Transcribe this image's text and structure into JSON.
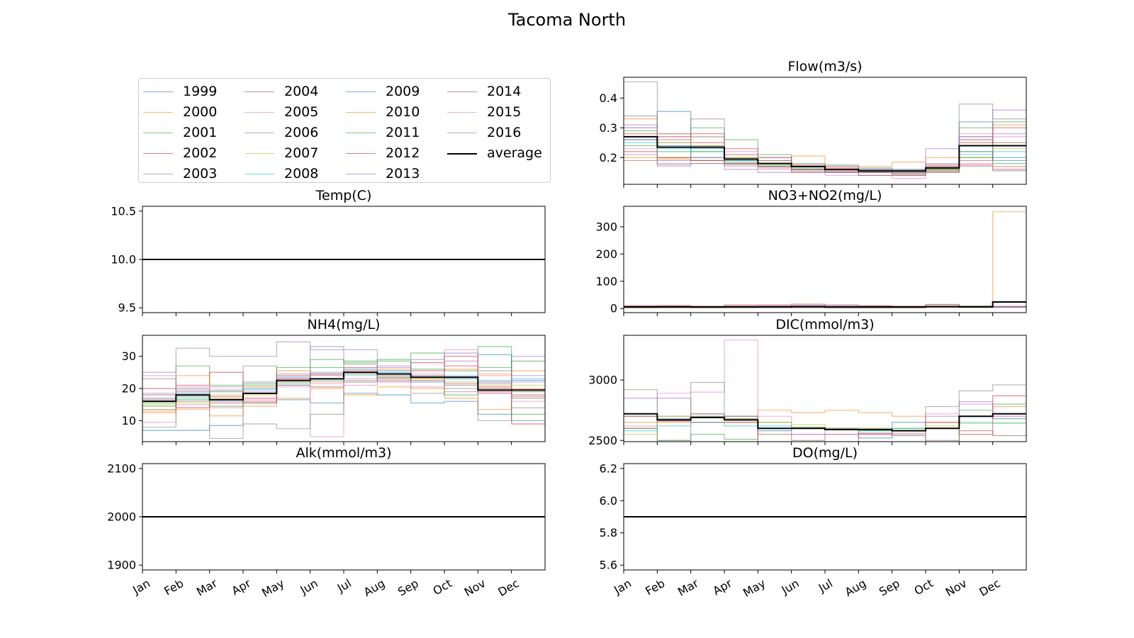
{
  "figure_title": "Tacoma North",
  "month_labels": [
    "Jan",
    "Feb",
    "Mar",
    "Apr",
    "May",
    "Jun",
    "Jul",
    "Aug",
    "Sep",
    "Oct",
    "Nov",
    "Dec"
  ],
  "year_colors": [
    "#1f77b4",
    "#ff7f0e",
    "#2ca02c",
    "#d62728",
    "#9467bd",
    "#8c564b",
    "#e377c2",
    "#7f7f7f",
    "#bcbd22",
    "#17becf",
    "#1f77b4",
    "#ff7f0e",
    "#2ca02c",
    "#d62728",
    "#9467bd",
    "#8c564b",
    "#e377c2",
    "#7f7f7f"
  ],
  "average_color": "#000000",
  "legend": [
    "1999",
    "2000",
    "2001",
    "2002",
    "2003",
    "2004",
    "2005",
    "2006",
    "2007",
    "2008",
    "2009",
    "2010",
    "2011",
    "2012",
    "2013",
    "2014",
    "2015",
    "2016",
    "average"
  ],
  "chart_data": [
    {
      "type": "line",
      "step": true,
      "title": "Temp(C)",
      "ylim": [
        9.45,
        10.55
      ],
      "yticks": [
        9.5,
        10.0,
        10.5
      ],
      "tick_format": "0.0",
      "series": [],
      "average": [
        10.0,
        10.0,
        10.0,
        10.0,
        10.0,
        10.0,
        10.0,
        10.0,
        10.0,
        10.0,
        10.0,
        10.0
      ]
    },
    {
      "type": "line",
      "step": true,
      "title": "NH4(mg/L)",
      "ylim": [
        3.5,
        36.5
      ],
      "yticks": [
        10,
        20,
        30
      ],
      "tick_format": "0",
      "series": [
        {
          "name": "1999",
          "values": [
            7.0,
            7.0,
            8.5,
            15.5,
            16.5,
            15.5,
            18.5,
            18.0,
            15.5,
            16.0,
            12.0,
            10.0
          ]
        },
        {
          "name": "2000",
          "values": [
            13.0,
            13.5,
            11.5,
            14.5,
            17.0,
            20.0,
            18.0,
            20.5,
            20.0,
            17.0,
            13.5,
            25.5
          ]
        },
        {
          "name": "2001",
          "values": [
            14.5,
            27.0,
            21.0,
            21.5,
            26.5,
            29.0,
            28.0,
            29.0,
            31.0,
            18.0,
            33.0,
            12.0
          ]
        },
        {
          "name": "2002",
          "values": [
            20.0,
            21.0,
            25.0,
            16.0,
            24.0,
            24.5,
            25.0,
            23.5,
            28.0,
            27.0,
            20.5,
            9.0
          ]
        },
        {
          "name": "2003",
          "values": [
            25.0,
            32.5,
            30.0,
            30.0,
            34.5,
            32.0,
            32.0,
            26.5,
            29.0,
            31.0,
            18.5,
            30.0
          ]
        },
        {
          "name": "2004",
          "values": [
            18.0,
            19.0,
            17.5,
            15.5,
            22.0,
            23.0,
            22.0,
            24.0,
            22.5,
            21.5,
            20.0,
            17.0
          ]
        },
        {
          "name": "2005",
          "values": [
            9.5,
            15.0,
            14.0,
            16.5,
            20.5,
            5.0,
            23.0,
            22.0,
            24.5,
            23.5,
            18.5,
            16.0
          ]
        },
        {
          "name": "2006",
          "values": [
            8.0,
            19.5,
            4.5,
            9.0,
            7.5,
            12.0,
            22.5,
            23.5,
            18.5,
            19.0,
            10.0,
            14.0
          ]
        },
        {
          "name": "2007",
          "values": [
            15.0,
            15.5,
            18.0,
            18.0,
            22.0,
            23.0,
            25.0,
            23.0,
            23.0,
            22.0,
            21.0,
            21.0
          ]
        },
        {
          "name": "2008",
          "values": [
            16.0,
            17.0,
            19.0,
            19.5,
            21.5,
            22.5,
            24.0,
            25.0,
            23.5,
            24.0,
            22.5,
            23.0
          ]
        },
        {
          "name": "2009",
          "values": [
            17.0,
            18.5,
            16.0,
            20.0,
            23.5,
            24.5,
            26.0,
            25.5,
            22.0,
            23.0,
            30.5,
            22.5
          ]
        },
        {
          "name": "2010",
          "values": [
            12.5,
            24.0,
            17.0,
            20.5,
            25.5,
            22.0,
            26.5,
            26.0,
            23.0,
            26.0,
            24.5,
            20.0
          ]
        },
        {
          "name": "2011",
          "values": [
            15.5,
            16.5,
            14.5,
            21.0,
            22.5,
            26.5,
            28.5,
            28.5,
            26.0,
            25.5,
            26.5,
            28.5
          ]
        },
        {
          "name": "2012",
          "values": [
            16.5,
            14.0,
            15.5,
            17.0,
            23.0,
            24.0,
            25.5,
            24.5,
            25.5,
            30.0,
            19.0,
            18.0
          ]
        },
        {
          "name": "2013",
          "values": [
            18.5,
            20.0,
            20.5,
            22.0,
            24.5,
            25.0,
            26.5,
            27.0,
            24.0,
            28.5,
            21.5,
            24.0
          ]
        },
        {
          "name": "2014",
          "values": [
            13.5,
            16.0,
            19.5,
            18.5,
            21.0,
            20.5,
            24.5,
            22.5,
            23.5,
            21.0,
            22.0,
            19.0
          ]
        },
        {
          "name": "2015",
          "values": [
            24.0,
            20.5,
            16.5,
            19.0,
            23.0,
            21.5,
            21.0,
            22.0,
            20.5,
            32.0,
            24.0,
            22.0
          ]
        },
        {
          "name": "2016",
          "values": [
            23.0,
            17.5,
            19.0,
            27.0,
            21.0,
            33.0,
            27.5,
            23.0,
            24.0,
            20.0,
            25.5,
            17.5
          ]
        }
      ],
      "average": [
        16.0,
        18.0,
        16.5,
        18.5,
        22.5,
        23.0,
        25.0,
        24.5,
        23.5,
        23.5,
        19.5,
        19.5
      ]
    },
    {
      "type": "line",
      "step": true,
      "title": "Alk(mmol/m3)",
      "ylim": [
        1890,
        2110
      ],
      "yticks": [
        1900,
        2000,
        2100
      ],
      "tick_format": "0",
      "series": [],
      "average": [
        2000,
        2000,
        2000,
        2000,
        2000,
        2000,
        2000,
        2000,
        2000,
        2000,
        2000,
        2000
      ]
    },
    {
      "type": "line",
      "step": true,
      "title": "Flow(m3/s)",
      "ylim": [
        0.11,
        0.47
      ],
      "yticks": [
        0.2,
        0.3,
        0.4
      ],
      "tick_format": "0.0",
      "series": [
        {
          "name": "1999",
          "values": [
            0.3,
            0.355,
            0.2,
            0.18,
            0.17,
            0.15,
            0.16,
            0.155,
            0.15,
            0.16,
            0.32,
            0.2
          ]
        },
        {
          "name": "2000",
          "values": [
            0.33,
            0.28,
            0.25,
            0.21,
            0.19,
            0.205,
            0.17,
            0.17,
            0.185,
            0.2,
            0.26,
            0.31
          ]
        },
        {
          "name": "2001",
          "values": [
            0.29,
            0.22,
            0.3,
            0.26,
            0.21,
            0.18,
            0.175,
            0.165,
            0.16,
            0.17,
            0.3,
            0.32
          ]
        },
        {
          "name": "2002",
          "values": [
            0.28,
            0.27,
            0.28,
            0.23,
            0.2,
            0.175,
            0.165,
            0.16,
            0.15,
            0.175,
            0.25,
            0.3
          ]
        },
        {
          "name": "2003",
          "values": [
            0.31,
            0.25,
            0.24,
            0.21,
            0.2,
            0.17,
            0.17,
            0.16,
            0.16,
            0.18,
            0.27,
            0.28
          ]
        },
        {
          "name": "2004",
          "values": [
            0.26,
            0.26,
            0.27,
            0.2,
            0.19,
            0.17,
            0.16,
            0.15,
            0.15,
            0.17,
            0.26,
            0.24
          ]
        },
        {
          "name": "2005",
          "values": [
            0.23,
            0.27,
            0.25,
            0.22,
            0.18,
            0.16,
            0.17,
            0.16,
            0.14,
            0.16,
            0.28,
            0.27
          ]
        },
        {
          "name": "2006",
          "values": [
            0.34,
            0.28,
            0.33,
            0.19,
            0.18,
            0.16,
            0.155,
            0.155,
            0.145,
            0.15,
            0.38,
            0.33
          ]
        },
        {
          "name": "2007",
          "values": [
            0.27,
            0.25,
            0.24,
            0.2,
            0.18,
            0.16,
            0.16,
            0.155,
            0.155,
            0.16,
            0.22,
            0.23
          ]
        },
        {
          "name": "2008",
          "values": [
            0.25,
            0.23,
            0.22,
            0.19,
            0.17,
            0.16,
            0.15,
            0.15,
            0.15,
            0.16,
            0.21,
            0.22
          ]
        },
        {
          "name": "2009",
          "values": [
            0.26,
            0.24,
            0.23,
            0.19,
            0.18,
            0.17,
            0.16,
            0.16,
            0.155,
            0.165,
            0.22,
            0.19
          ]
        },
        {
          "name": "2010",
          "values": [
            0.2,
            0.195,
            0.19,
            0.18,
            0.17,
            0.15,
            0.15,
            0.14,
            0.14,
            0.16,
            0.2,
            0.17
          ]
        },
        {
          "name": "2011",
          "values": [
            0.24,
            0.2,
            0.22,
            0.185,
            0.175,
            0.165,
            0.16,
            0.15,
            0.15,
            0.16,
            0.2,
            0.18
          ]
        },
        {
          "name": "2012",
          "values": [
            0.22,
            0.2,
            0.19,
            0.18,
            0.17,
            0.16,
            0.155,
            0.15,
            0.145,
            0.155,
            0.175,
            0.16
          ]
        },
        {
          "name": "2013",
          "values": [
            0.21,
            0.18,
            0.2,
            0.16,
            0.15,
            0.15,
            0.15,
            0.15,
            0.15,
            0.23,
            0.27,
            0.36
          ]
        },
        {
          "name": "2014",
          "values": [
            0.19,
            0.19,
            0.19,
            0.18,
            0.17,
            0.16,
            0.15,
            0.14,
            0.14,
            0.15,
            0.19,
            0.25
          ]
        },
        {
          "name": "2015",
          "values": [
            0.3,
            0.17,
            0.18,
            0.17,
            0.16,
            0.15,
            0.14,
            0.14,
            0.13,
            0.17,
            0.18,
            0.17
          ]
        },
        {
          "name": "2016",
          "values": [
            0.455,
            0.175,
            0.18,
            0.175,
            0.165,
            0.155,
            0.15,
            0.14,
            0.14,
            0.155,
            0.17,
            0.155
          ]
        }
      ],
      "average": [
        0.27,
        0.235,
        0.235,
        0.195,
        0.18,
        0.17,
        0.16,
        0.155,
        0.155,
        0.165,
        0.24,
        0.24
      ]
    },
    {
      "type": "line",
      "step": true,
      "title": "NO3+NO2(mg/L)",
      "ylim": [
        -15,
        375
      ],
      "yticks": [
        0,
        100,
        200,
        300
      ],
      "tick_format": "0",
      "series": [
        {
          "name": "1999",
          "values": [
            5,
            6,
            4,
            5,
            5,
            4,
            3,
            3,
            4,
            5,
            6,
            5
          ]
        },
        {
          "name": "2000",
          "values": [
            3,
            4,
            3,
            4,
            4,
            3,
            3,
            3,
            3,
            4,
            4,
            355
          ]
        },
        {
          "name": "2001",
          "values": [
            4,
            3,
            4,
            3,
            4,
            4,
            3,
            3,
            3,
            4,
            4,
            5
          ]
        },
        {
          "name": "2002",
          "values": [
            10,
            11,
            8,
            13,
            13,
            16,
            12,
            10,
            8,
            15,
            7,
            8
          ]
        },
        {
          "name": "2003",
          "values": [
            8,
            9,
            7,
            9,
            10,
            12,
            13,
            8,
            7,
            8,
            6,
            7
          ]
        },
        {
          "name": "2004",
          "values": [
            6,
            7,
            5,
            7,
            7,
            8,
            7,
            6,
            5,
            6,
            5,
            6
          ]
        },
        {
          "name": "2005",
          "values": [
            5,
            6,
            5,
            5,
            5,
            5,
            4,
            4,
            4,
            5,
            5,
            5
          ]
        },
        {
          "name": "2006",
          "values": [
            2,
            3,
            2,
            3,
            3,
            3,
            2,
            2,
            2,
            14,
            10,
            4
          ]
        }
      ],
      "average": [
        6,
        6,
        6,
        6,
        6,
        7,
        6,
        6,
        6,
        7,
        6,
        24
      ]
    },
    {
      "type": "line",
      "step": true,
      "title": "DIC(mmol/m3)",
      "ylim": [
        2490,
        3370
      ],
      "yticks": [
        2500,
        3000
      ],
      "tick_format": "0",
      "series": [
        {
          "name": "1999",
          "values": [
            2700,
            2680,
            2700,
            2680,
            2580,
            2600,
            2600,
            2520,
            2650,
            2600,
            2700,
            2680
          ]
        },
        {
          "name": "2000",
          "values": [
            2650,
            2650,
            2650,
            2650,
            2750,
            2730,
            2750,
            2730,
            2700,
            2650,
            2700,
            2780
          ]
        },
        {
          "name": "2001",
          "values": [
            2600,
            2500,
            2550,
            2510,
            2650,
            2610,
            2600,
            2580,
            2600,
            2470,
            2750,
            2800
          ]
        },
        {
          "name": "2002",
          "values": [
            2700,
            2660,
            2650,
            2650,
            2480,
            2460,
            2480,
            2550,
            2580,
            2650,
            2550,
            2870
          ]
        },
        {
          "name": "2003",
          "values": [
            2850,
            2850,
            2720,
            2700,
            2600,
            2550,
            2600,
            2560,
            2580,
            2700,
            2820,
            2700
          ]
        },
        {
          "name": "2004",
          "values": [
            2600,
            2700,
            2720,
            2700,
            2550,
            2500,
            2550,
            2560,
            2540,
            2500,
            2580,
            2540
          ]
        },
        {
          "name": "2005",
          "values": [
            2620,
            2890,
            2900,
            3330,
            2700,
            2550,
            2550,
            2550,
            2550,
            2720,
            2800,
            2700
          ]
        },
        {
          "name": "2006",
          "values": [
            2920,
            2500,
            2980,
            2700,
            2600,
            2600,
            2600,
            2600,
            2560,
            2780,
            2910,
            2960
          ]
        },
        {
          "name": "2007",
          "values": [
            2550,
            2700,
            2700,
            2680,
            2650,
            2630,
            2600,
            2600,
            2600,
            2620,
            2640,
            2650
          ]
        },
        {
          "name": "2008",
          "values": [
            2580,
            2620,
            2650,
            2620,
            2620,
            2600,
            2590,
            2580,
            2600,
            2600,
            2650,
            2640
          ]
        }
      ],
      "average": [
        2720,
        2670,
        2690,
        2670,
        2600,
        2600,
        2590,
        2590,
        2580,
        2600,
        2700,
        2720
      ]
    },
    {
      "type": "line",
      "step": true,
      "title": "DO(mg/L)",
      "ylim": [
        5.57,
        6.23
      ],
      "yticks": [
        5.6,
        5.8,
        6.0,
        6.2
      ],
      "tick_format": "0.0",
      "series": [],
      "average": [
        5.9,
        5.9,
        5.9,
        5.9,
        5.9,
        5.9,
        5.9,
        5.9,
        5.9,
        5.9,
        5.9,
        5.9
      ]
    }
  ]
}
